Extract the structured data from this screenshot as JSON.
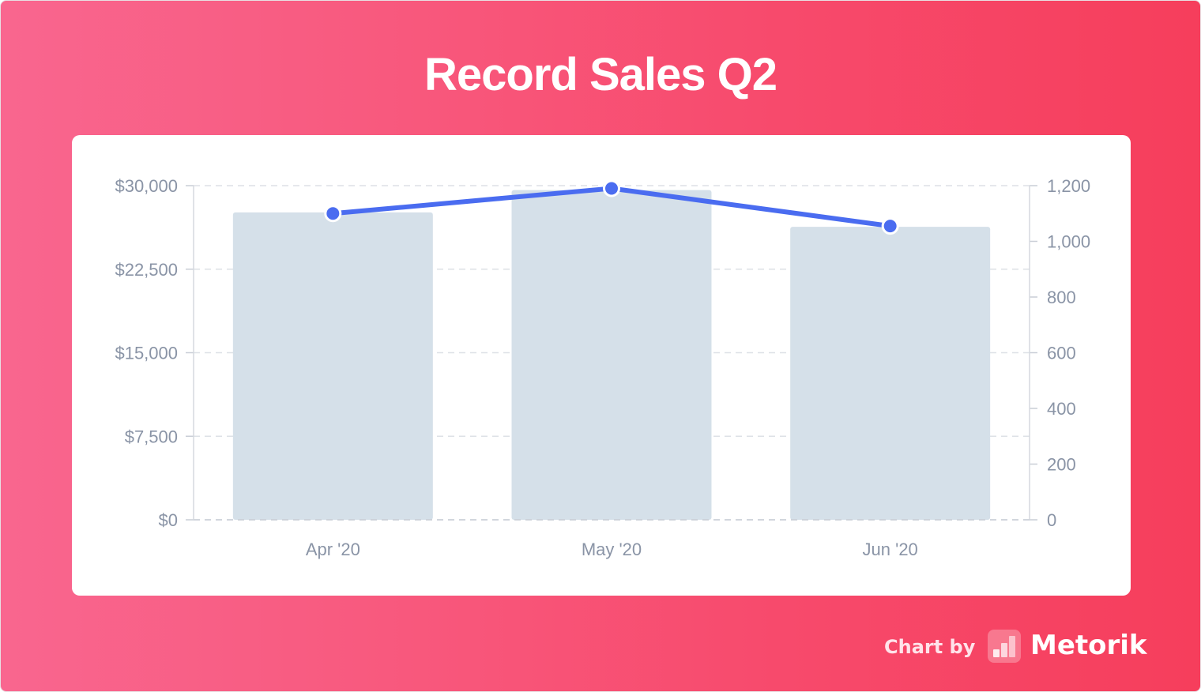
{
  "title": "Record Sales Q2",
  "footer": {
    "label": "Chart by",
    "brand": "Metorik",
    "logo_icon": "metorik-logo-icon"
  },
  "colors": {
    "background_start": "#f9668f",
    "background_end": "#f63e5c",
    "bar": "#d5e0e9",
    "line": "#4a6cf0"
  },
  "chart_data": {
    "type": "bar",
    "categories": [
      "Apr '20",
      "May '20",
      "Jun '20"
    ],
    "series": [
      {
        "type": "bar",
        "axis": "left",
        "values": [
          27600,
          29600,
          26300
        ]
      },
      {
        "type": "line",
        "axis": "right",
        "values": [
          1100,
          1190,
          1055
        ]
      }
    ],
    "y_left": {
      "ticks": [
        "$0",
        "$7,500",
        "$15,000",
        "$22,500",
        "$30,000"
      ],
      "ylim": [
        0,
        30000
      ]
    },
    "y_right": {
      "ticks": [
        "0",
        "200",
        "400",
        "600",
        "800",
        "1,000",
        "1,200"
      ],
      "ylim": [
        0,
        1200
      ]
    },
    "grid": true,
    "legend": "none"
  }
}
